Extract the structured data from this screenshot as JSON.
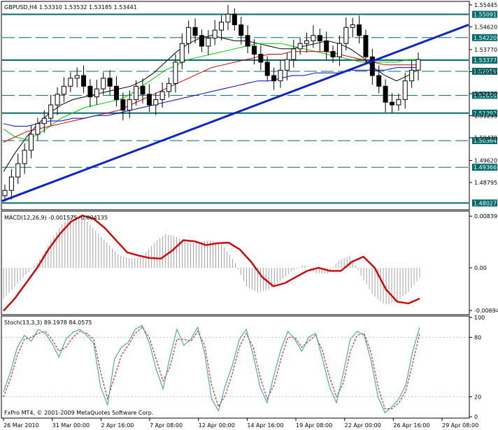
{
  "main": {
    "header": "GBPUSD,H4  1.53310 1.53532 1.53185 1.53441",
    "ylim": [
      1.478,
      1.5555
    ],
    "price_labels": [
      "1.55445",
      "1.54620",
      "1.53770",
      "1.52945",
      "1.52120",
      "1.51295",
      "1.50470",
      "1.49620",
      "1.48795"
    ],
    "price_values": [
      1.55445,
      1.5462,
      1.5377,
      1.52945,
      1.5212,
      1.51295,
      1.5047,
      1.4962,
      1.48795
    ],
    "levels": [
      {
        "label": "1.55091",
        "value": 1.55091,
        "style": "solid"
      },
      {
        "label": "1.54220",
        "value": 1.5422,
        "style": "dash"
      },
      {
        "label": "1.53377",
        "value": 1.53377,
        "style": "solid"
      },
      {
        "label": "1.52959",
        "value": 1.52959,
        "style": "dash"
      },
      {
        "label": "1.52059",
        "value": 1.52059,
        "style": "dash"
      },
      {
        "label": "1.51392",
        "value": 1.51392,
        "style": "solid"
      },
      {
        "label": "1.50364",
        "value": 1.50364,
        "style": "dash"
      },
      {
        "label": "1.49366",
        "value": 1.49366,
        "style": "dash"
      },
      {
        "label": "1.48027",
        "value": 1.48027,
        "style": "solid"
      }
    ],
    "level_color": "#006b6b",
    "trendline_color": "#0a23c8"
  },
  "macd": {
    "header": "MACD(12,26,9) -0.001575 -0.004135",
    "ylim": [
      -0.0075,
      0.0091
    ],
    "axis_labels": [
      "0.00839",
      "0.00",
      "-0.00694"
    ],
    "axis_values": [
      0.00839,
      0.0,
      -0.00694
    ],
    "signal_color": "#d10000",
    "hist_color": "#a0a0a0"
  },
  "stoch": {
    "header": "Stoch(13,3,3) 89.1978 84.0575",
    "ylim": [
      0,
      100
    ],
    "axis_labels": [
      "100",
      "80",
      "20",
      "0"
    ],
    "axis_values": [
      100,
      80,
      20,
      0
    ],
    "main_color": "#2aa0a0",
    "signal_color": "#d10000"
  },
  "copyright": "FxPro MT4, © 2001-2009 MetaQuotes Software Corp.",
  "time_labels": [
    "26 Mar 2010",
    "31 Mar 00:00",
    "2 Apr 16:00",
    "7 Apr 08:00",
    "12 Apr 00:00",
    "14 Apr 16:00",
    "19 Apr 08:00",
    "22 Apr 00:00",
    "26 Apr 16:00",
    "29 Apr 08:00"
  ],
  "chart_data": [
    {
      "type": "candlestick",
      "title": "GBPUSD,H4",
      "ohlc_header": "1.53310 1.53532 1.53185 1.53441",
      "x_tick_labels": [
        "26 Mar 2010",
        "31 Mar 00:00",
        "2 Apr 16:00",
        "7 Apr 08:00",
        "12 Apr 00:00",
        "14 Apr 16:00",
        "19 Apr 08:00",
        "22 Apr 00:00",
        "26 Apr 16:00",
        "29 Apr 08:00"
      ],
      "close_path": [
        1.485,
        1.49,
        1.495,
        1.5,
        1.506,
        1.51,
        1.512,
        1.517,
        1.521,
        1.524,
        1.527,
        1.528,
        1.524,
        1.52,
        1.523,
        1.527,
        1.524,
        1.519,
        1.515,
        1.519,
        1.524,
        1.521,
        1.517,
        1.519,
        1.522,
        1.525,
        1.533,
        1.54,
        1.546,
        1.543,
        1.539,
        1.542,
        1.545,
        1.548,
        1.551,
        1.547,
        1.543,
        1.539,
        1.536,
        1.533,
        1.528,
        1.526,
        1.53,
        1.534,
        1.538,
        1.54,
        1.541,
        1.543,
        1.541,
        1.537,
        1.535,
        1.54,
        1.546,
        1.547,
        1.543,
        1.535,
        1.528,
        1.524,
        1.518,
        1.517,
        1.519,
        1.526,
        1.53,
        1.534
      ],
      "moving_averages": [
        {
          "color": "#000000",
          "values": [
            1.492,
            1.499,
            1.505,
            1.51,
            1.514,
            1.517,
            1.519,
            1.52,
            1.521,
            1.522,
            1.523,
            1.524,
            1.526,
            1.529,
            1.533,
            1.537,
            1.54,
            1.542,
            1.543,
            1.542,
            1.541,
            1.541,
            1.54,
            1.539,
            1.538,
            1.538,
            1.539,
            1.54,
            1.541,
            1.54,
            1.538,
            1.535,
            1.531,
            1.528,
            1.526,
            1.528,
            1.531
          ]
        },
        {
          "color": "#00c800",
          "values": [
            1.508,
            1.505,
            1.504,
            1.506,
            1.509,
            1.512,
            1.514,
            1.516,
            1.517,
            1.518,
            1.519,
            1.521,
            1.524,
            1.527,
            1.53,
            1.532,
            1.534,
            1.535,
            1.536,
            1.537,
            1.538,
            1.539,
            1.54,
            1.54,
            1.54,
            1.539,
            1.538,
            1.537,
            1.536,
            1.535,
            1.534,
            1.533,
            1.533,
            1.533,
            1.533,
            1.534,
            1.534
          ]
        },
        {
          "color": "#c80000",
          "values": [
            1.503,
            1.505,
            1.507,
            1.508,
            1.509,
            1.51,
            1.511,
            1.512,
            1.513,
            1.514,
            1.515,
            1.517,
            1.519,
            1.521,
            1.523,
            1.525,
            1.527,
            1.529,
            1.531,
            1.532,
            1.533,
            1.534,
            1.535,
            1.536,
            1.536,
            1.537,
            1.537,
            1.537,
            1.537,
            1.536,
            1.535,
            1.534,
            1.533,
            1.532,
            1.532,
            1.532,
            1.532
          ]
        },
        {
          "color": "#0000c8",
          "values": [
            1.51,
            1.509,
            1.509,
            1.51,
            1.511,
            1.511,
            1.512,
            1.512,
            1.513,
            1.513,
            1.514,
            1.515,
            1.516,
            1.517,
            1.518,
            1.519,
            1.52,
            1.521,
            1.522,
            1.523,
            1.524,
            1.525,
            1.526,
            1.526,
            1.527,
            1.528,
            1.528,
            1.529,
            1.529,
            1.529,
            1.53,
            1.53,
            1.53,
            1.53,
            1.531,
            1.531,
            1.531
          ]
        }
      ],
      "horizontal_levels": [
        1.55091,
        1.5422,
        1.53377,
        1.52959,
        1.52059,
        1.51392,
        1.50364,
        1.49366,
        1.48027
      ],
      "ylim": [
        1.478,
        1.5555
      ]
    },
    {
      "type": "line",
      "title": "MACD(12,26,9) -0.001575 -0.004135",
      "signal": [
        -0.007,
        -0.005,
        -0.0025,
        0.0,
        0.003,
        0.0055,
        0.0075,
        0.0085,
        0.008,
        0.0065,
        0.0045,
        0.0025,
        0.002,
        0.0016,
        0.0015,
        0.0028,
        0.0045,
        0.0043,
        0.0037,
        0.004,
        0.0041,
        0.003,
        0.001,
        -0.0015,
        -0.003,
        -0.0025,
        -0.0015,
        -0.0005,
        0.0,
        -0.0005,
        -0.0005,
        0.001,
        0.0018,
        0.0,
        -0.0035,
        -0.0055,
        -0.0058,
        -0.005
      ],
      "histogram": [
        -0.005,
        -0.003,
        -0.001,
        0.001,
        0.004,
        0.007,
        0.0085,
        0.008,
        0.006,
        0.004,
        0.002,
        0.0015,
        0.0018,
        0.004,
        0.0055,
        0.005,
        0.004,
        0.0042,
        0.0045,
        0.0035,
        0.001,
        -0.003,
        -0.004,
        -0.0035,
        -0.002,
        -0.0005,
        0.0005,
        -0.0008,
        -0.001,
        0.0012,
        0.002,
        -0.0015,
        -0.0045,
        -0.006,
        -0.0055,
        -0.004,
        -0.0016
      ],
      "ylim": [
        -0.0075,
        0.0091
      ]
    },
    {
      "type": "line",
      "title": "Stoch(13,3,3) 89.1978 84.0575",
      "main": [
        25,
        45,
        70,
        82,
        76,
        88,
        84,
        74,
        60,
        78,
        85,
        88,
        82,
        74,
        30,
        12,
        58,
        70,
        75,
        88,
        92,
        75,
        48,
        28,
        60,
        88,
        72,
        78,
        90,
        64,
        18,
        6,
        32,
        52,
        78,
        88,
        62,
        30,
        14,
        42,
        68,
        86,
        78,
        66,
        80,
        84,
        58,
        30,
        14,
        44,
        78,
        86,
        82,
        56,
        20,
        4,
        10,
        18,
        32,
        66,
        90
      ],
      "signal": [
        20,
        38,
        62,
        78,
        80,
        84,
        86,
        78,
        66,
        70,
        80,
        86,
        84,
        78,
        45,
        18,
        40,
        62,
        72,
        84,
        90,
        80,
        58,
        36,
        50,
        78,
        78,
        76,
        86,
        72,
        32,
        10,
        22,
        44,
        70,
        84,
        70,
        40,
        18,
        32,
        58,
        80,
        80,
        70,
        76,
        82,
        66,
        40,
        20,
        34,
        66,
        82,
        84,
        64,
        30,
        8,
        8,
        14,
        26,
        54,
        84
      ],
      "ylim": [
        0,
        100
      ]
    }
  ]
}
